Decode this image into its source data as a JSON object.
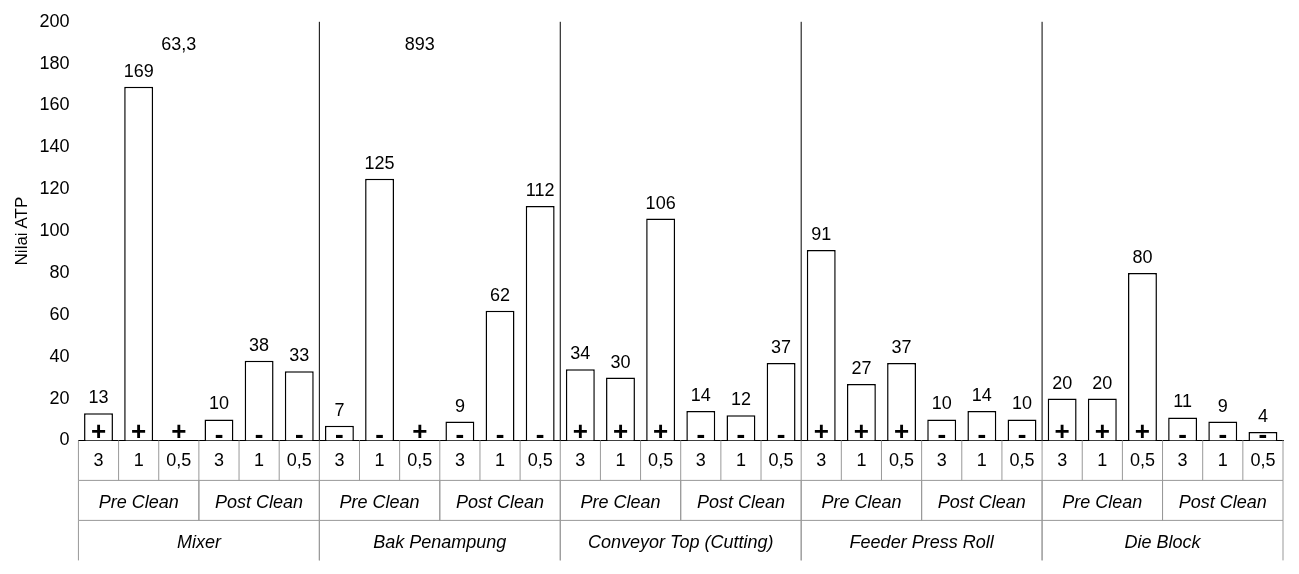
{
  "chart_data": {
    "type": "bar",
    "ylabel": "Nilai ATP",
    "categories": [
      "3",
      "1",
      "0,5",
      "3",
      "1",
      "0,5",
      "3",
      "1",
      "0,5",
      "3",
      "1",
      "0,5",
      "3",
      "1",
      "0,5",
      "3",
      "1",
      "0,5",
      "3",
      "1",
      "0,5",
      "3",
      "1",
      "0,5",
      "3",
      "1",
      "0,5",
      "3",
      "1",
      "0,5"
    ],
    "values": [
      13,
      169,
      null,
      10,
      38,
      33,
      7,
      125,
      null,
      9,
      62,
      112,
      34,
      30,
      106,
      14,
      12,
      37,
      91,
      27,
      37,
      10,
      14,
      10,
      20,
      20,
      80,
      11,
      9,
      4
    ],
    "value_labels": [
      "13",
      "169",
      "63,3",
      "10",
      "38",
      "33",
      "7",
      "125",
      "893",
      "9",
      "62",
      "112",
      "34",
      "30",
      "106",
      "14",
      "12",
      "37",
      "91",
      "27",
      "37",
      "10",
      "14",
      "10",
      "20",
      "20",
      "80",
      "11",
      "9",
      "4"
    ],
    "annotations": [
      "+",
      "+",
      "+",
      "-",
      "-",
      "-",
      "-",
      "-",
      "+",
      "-",
      "-",
      "-",
      "+",
      "+",
      "+",
      "-",
      "-",
      "-",
      "+",
      "+",
      "+",
      "-",
      "-",
      "-",
      "+",
      "+",
      "+",
      "-",
      "-",
      "-",
      "Pre Clean",
      "Post Clean",
      "Pre Clean",
      "Post Clean",
      "Pre Clean",
      "Post Clean",
      "Pre Clean",
      "Post Clean",
      "Pre Clean",
      "Post Clean",
      "Mixer",
      "Bak Penampung",
      "Conveyor Top (Cutting)",
      "Feeder Press Roll",
      "Die Block"
    ],
    "color": "#ffffff",
    "ylim": [
      0,
      200
    ],
    "yticks": [
      0,
      20,
      40,
      60,
      80,
      100,
      120,
      140,
      160,
      180,
      200
    ],
    "grid": false,
    "legend": false
  }
}
